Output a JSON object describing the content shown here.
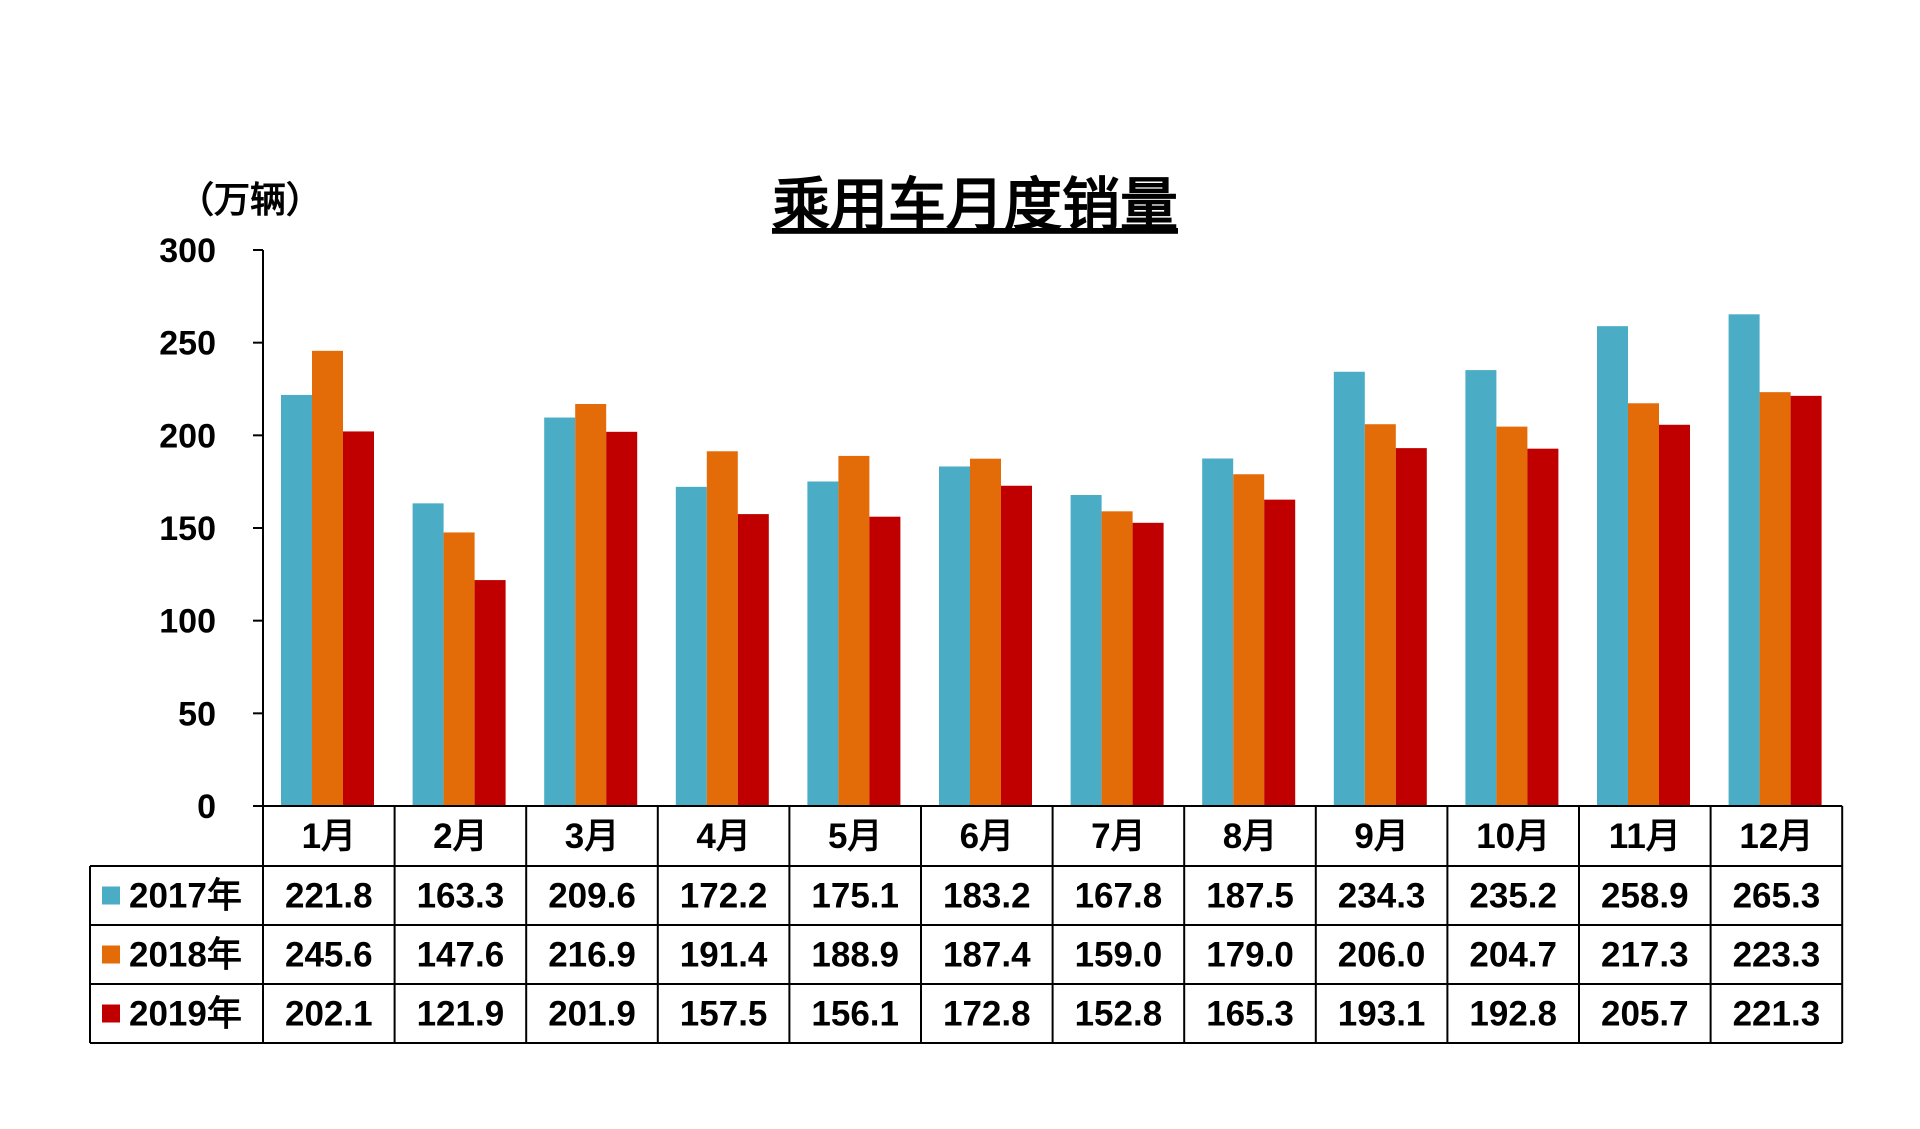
{
  "chart_data": {
    "type": "bar",
    "title": "乘用车月度销量",
    "ylabel": "（万辆）",
    "ylim": [
      0,
      300
    ],
    "yticks": [
      0,
      50,
      100,
      150,
      200,
      250,
      300
    ],
    "categories": [
      "1月",
      "2月",
      "3月",
      "4月",
      "5月",
      "6月",
      "7月",
      "8月",
      "9月",
      "10月",
      "11月",
      "12月"
    ],
    "series": [
      {
        "name": "2017年",
        "color": "#4bacc6",
        "values": [
          221.8,
          163.3,
          209.6,
          172.2,
          175.1,
          183.2,
          167.8,
          187.5,
          234.3,
          235.2,
          258.9,
          265.3
        ]
      },
      {
        "name": "2018年",
        "color": "#e36c09",
        "values": [
          245.6,
          147.6,
          216.9,
          191.4,
          188.9,
          187.4,
          159.0,
          179.0,
          206.0,
          204.7,
          217.3,
          223.3
        ]
      },
      {
        "name": "2019年",
        "color": "#c00000",
        "values": [
          202.1,
          121.9,
          201.9,
          157.5,
          156.1,
          172.8,
          152.8,
          165.3,
          193.1,
          192.8,
          205.7,
          221.3
        ]
      }
    ],
    "grid": false,
    "legend": "data-table"
  }
}
